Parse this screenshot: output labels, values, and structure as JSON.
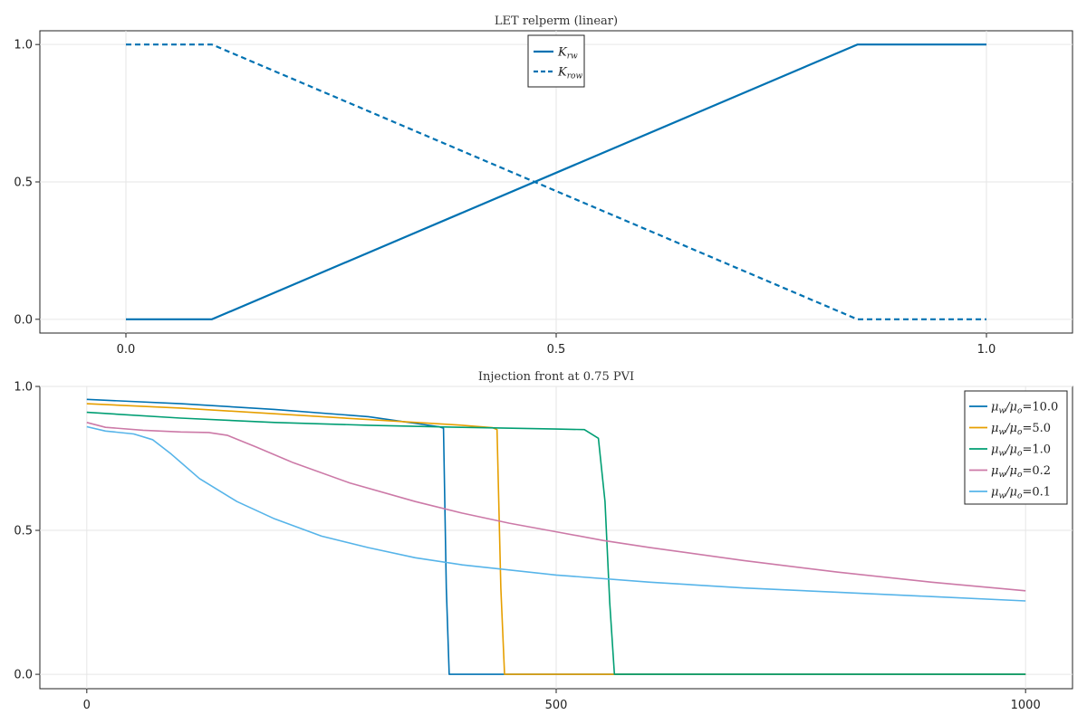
{
  "chart_data": [
    {
      "type": "line",
      "title": "LET relperm (linear)",
      "xlabel": "",
      "ylabel": "",
      "xlim": [
        -0.1,
        1.1
      ],
      "ylim": [
        -0.05,
        1.05
      ],
      "xticks": [
        0.0,
        0.5,
        1.0
      ],
      "xtick_labels": [
        "0.0",
        "0.5",
        "1.0"
      ],
      "yticks": [
        0.0,
        0.5,
        1.0
      ],
      "ytick_labels": [
        "0.0",
        "0.5",
        "1.0"
      ],
      "grid": true,
      "legend_position": "top-center",
      "series": [
        {
          "name": "K_rw",
          "legend_main": "K",
          "legend_sub": "rw",
          "color": "#0072b2",
          "dash": "solid",
          "x": [
            0.0,
            0.1,
            0.85,
            1.0
          ],
          "y": [
            0.0,
            0.0,
            1.0,
            1.0
          ]
        },
        {
          "name": "K_row",
          "legend_main": "K",
          "legend_sub": "row",
          "color": "#0072b2",
          "dash": "dashed",
          "x": [
            0.0,
            0.1,
            0.85,
            1.0
          ],
          "y": [
            1.0,
            1.0,
            0.0,
            0.0
          ]
        }
      ]
    },
    {
      "type": "line",
      "title": "Injection front at 0.75 PVI",
      "xlabel": "",
      "ylabel": "",
      "xlim": [
        -50,
        1050
      ],
      "ylim": [
        -0.05,
        1.0
      ],
      "xticks": [
        0,
        500,
        1000
      ],
      "xtick_labels": [
        "0",
        "500",
        "1000"
      ],
      "yticks": [
        0.0,
        0.5,
        1.0
      ],
      "ytick_labels": [
        "0.0",
        "0.5",
        "1.0"
      ],
      "grid": true,
      "legend_position": "top-right",
      "series": [
        {
          "name": "μw/μo=10.0",
          "legend_ratio": "10.0",
          "color": "#0072b2",
          "x": [
            0,
            100,
            200,
            300,
            375,
            380,
            383,
            386,
            400,
            600,
            800,
            1000
          ],
          "y": [
            0.955,
            0.94,
            0.92,
            0.895,
            0.86,
            0.855,
            0.3,
            0.0,
            0.0,
            0.0,
            0.0,
            0.0
          ]
        },
        {
          "name": "μw/μo=5.0",
          "legend_ratio": "5.0",
          "color": "#e69f00",
          "x": [
            0,
            100,
            200,
            300,
            400,
            432,
            437,
            441,
            445,
            500,
            700,
            1000
          ],
          "y": [
            0.94,
            0.925,
            0.905,
            0.885,
            0.865,
            0.857,
            0.85,
            0.3,
            0.0,
            0.0,
            0.0,
            0.0
          ],
          "z_note": ""
        },
        {
          "name": "μw/μo=1.0",
          "legend_ratio": "1.0",
          "color": "#009e73",
          "x": [
            0,
            100,
            200,
            300,
            400,
            500,
            530,
            545,
            552,
            557,
            562,
            600,
            800,
            1000
          ],
          "y": [
            0.91,
            0.89,
            0.875,
            0.865,
            0.858,
            0.852,
            0.85,
            0.82,
            0.6,
            0.25,
            0.0,
            0.0,
            0.0,
            0.0
          ]
        },
        {
          "name": "μw/μo=0.2",
          "legend_ratio": "0.2",
          "color": "#cc79a7",
          "x": [
            0,
            20,
            60,
            100,
            130,
            150,
            180,
            220,
            280,
            350,
            400,
            450,
            500,
            550,
            600,
            700,
            800,
            900,
            1000
          ],
          "y": [
            0.875,
            0.858,
            0.848,
            0.842,
            0.84,
            0.83,
            0.79,
            0.735,
            0.665,
            0.6,
            0.56,
            0.525,
            0.495,
            0.465,
            0.44,
            0.395,
            0.355,
            0.32,
            0.29
          ]
        },
        {
          "name": "μw/μo=0.1",
          "legend_ratio": "0.1",
          "color": "#56b4e9",
          "x": [
            0,
            20,
            50,
            70,
            90,
            120,
            160,
            200,
            250,
            300,
            350,
            400,
            500,
            600,
            700,
            800,
            900,
            1000
          ],
          "y": [
            0.86,
            0.845,
            0.835,
            0.815,
            0.765,
            0.68,
            0.6,
            0.54,
            0.48,
            0.44,
            0.405,
            0.38,
            0.345,
            0.32,
            0.3,
            0.285,
            0.27,
            0.255
          ]
        }
      ]
    }
  ]
}
